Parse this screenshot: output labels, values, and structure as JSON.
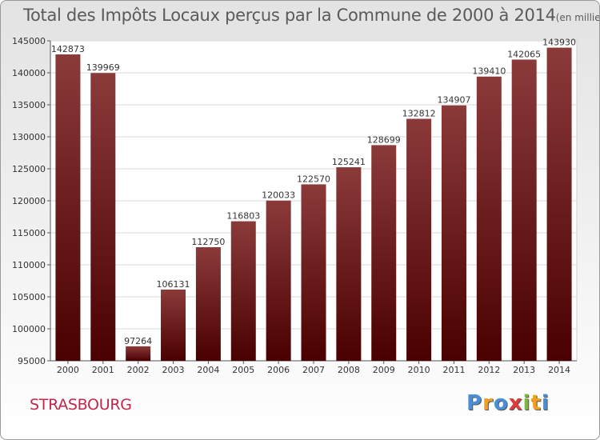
{
  "title": "Total des Impôts Locaux perçus par la Commune de 2000 à 2014",
  "title_unit": "(en milliers d'€)",
  "commune": "STRASBOURG",
  "logo": {
    "text": "Proxiti",
    "letters": [
      {
        "char": "P",
        "color": "#4a8fd6"
      },
      {
        "char": "r",
        "color": "#f0a020"
      },
      {
        "char": "o",
        "color": "#4a8fd6"
      },
      {
        "char": "x",
        "color": "#e03a3a"
      },
      {
        "char": "i",
        "color": "#7ab840"
      },
      {
        "char": "t",
        "color": "#f0a020"
      },
      {
        "char": "i",
        "color": "#4a8fd6"
      }
    ]
  },
  "colors": {
    "bar_top": "#8b3a3a",
    "bar_bottom": "#4a0000",
    "title": "#5a5a5a",
    "commune": "#c0284a"
  },
  "chart_data": {
    "type": "bar",
    "title": "Total des Impôts Locaux perçus par la Commune de 2000 à 2014",
    "categories": [
      "2000",
      "2001",
      "2002",
      "2003",
      "2004",
      "2005",
      "2006",
      "2007",
      "2008",
      "2009",
      "2010",
      "2011",
      "2012",
      "2013",
      "2014"
    ],
    "values": [
      142873,
      139969,
      97264,
      106131,
      112750,
      116803,
      120033,
      122570,
      125241,
      128699,
      132812,
      134907,
      139410,
      142065,
      143930
    ],
    "ylim": [
      95000,
      145000
    ],
    "yticks": [
      95000,
      100000,
      105000,
      110000,
      115000,
      120000,
      125000,
      130000,
      135000,
      140000,
      145000
    ],
    "xlabel": "",
    "ylabel": "",
    "grid": "horizontal",
    "legend": "none"
  }
}
